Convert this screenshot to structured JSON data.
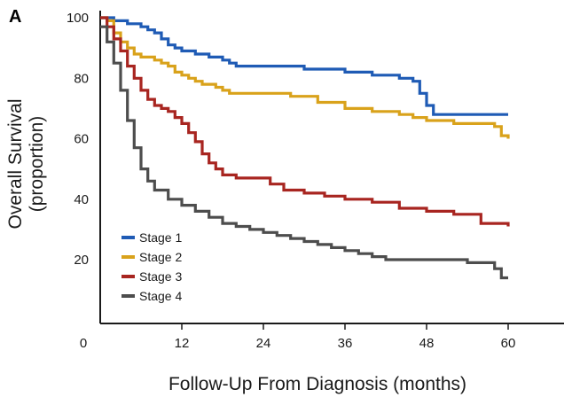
{
  "panel_label": "A",
  "chart_data": {
    "type": "line",
    "step": true,
    "xlabel": "Follow-Up From Diagnosis (months)",
    "ylabel_line1": "Overall Survival",
    "ylabel_line2": "(proportion)",
    "xlim": [
      0,
      60
    ],
    "ylim": [
      10,
      100
    ],
    "x_ticks": [
      0,
      12,
      24,
      36,
      48,
      60
    ],
    "y_ticks": [
      20,
      40,
      60,
      80,
      100
    ],
    "grid": false,
    "legend_position": "lower-left",
    "series": [
      {
        "name": "Stage 1",
        "color": "#1f5bb5",
        "points": [
          [
            0,
            100
          ],
          [
            1,
            100
          ],
          [
            2,
            99
          ],
          [
            4,
            98
          ],
          [
            6,
            97
          ],
          [
            7,
            96
          ],
          [
            8,
            95
          ],
          [
            9,
            93
          ],
          [
            10,
            91
          ],
          [
            11,
            90
          ],
          [
            12,
            89
          ],
          [
            14,
            88
          ],
          [
            16,
            87
          ],
          [
            18,
            86
          ],
          [
            19,
            85
          ],
          [
            20,
            84
          ],
          [
            24,
            84
          ],
          [
            30,
            83
          ],
          [
            36,
            82
          ],
          [
            40,
            81
          ],
          [
            44,
            80
          ],
          [
            46,
            79
          ],
          [
            47,
            75
          ],
          [
            48,
            71
          ],
          [
            49,
            68
          ],
          [
            60,
            68
          ]
        ]
      },
      {
        "name": "Stage 2",
        "color": "#d9a21b",
        "points": [
          [
            0,
            100
          ],
          [
            1,
            99
          ],
          [
            2,
            95
          ],
          [
            3,
            92
          ],
          [
            4,
            90
          ],
          [
            5,
            88
          ],
          [
            6,
            87
          ],
          [
            8,
            86
          ],
          [
            9,
            85
          ],
          [
            10,
            84
          ],
          [
            11,
            82
          ],
          [
            12,
            81
          ],
          [
            13,
            80
          ],
          [
            14,
            79
          ],
          [
            15,
            78
          ],
          [
            17,
            77
          ],
          [
            18,
            76
          ],
          [
            19,
            75
          ],
          [
            24,
            75
          ],
          [
            28,
            74
          ],
          [
            32,
            72
          ],
          [
            36,
            70
          ],
          [
            40,
            69
          ],
          [
            44,
            68
          ],
          [
            46,
            67
          ],
          [
            48,
            66
          ],
          [
            52,
            65
          ],
          [
            56,
            65
          ],
          [
            58,
            64
          ],
          [
            59,
            61
          ],
          [
            60,
            60
          ]
        ]
      },
      {
        "name": "Stage 3",
        "color": "#a82520",
        "points": [
          [
            0,
            100
          ],
          [
            1,
            97
          ],
          [
            2,
            93
          ],
          [
            3,
            89
          ],
          [
            4,
            84
          ],
          [
            5,
            80
          ],
          [
            6,
            76
          ],
          [
            7,
            73
          ],
          [
            8,
            71
          ],
          [
            9,
            70
          ],
          [
            10,
            69
          ],
          [
            11,
            67
          ],
          [
            12,
            65
          ],
          [
            13,
            62
          ],
          [
            14,
            59
          ],
          [
            15,
            55
          ],
          [
            16,
            52
          ],
          [
            17,
            50
          ],
          [
            18,
            48
          ],
          [
            20,
            47
          ],
          [
            24,
            47
          ],
          [
            25,
            45
          ],
          [
            27,
            43
          ],
          [
            30,
            42
          ],
          [
            33,
            41
          ],
          [
            36,
            40
          ],
          [
            40,
            39
          ],
          [
            44,
            37
          ],
          [
            48,
            36
          ],
          [
            52,
            35
          ],
          [
            56,
            32
          ],
          [
            60,
            31
          ]
        ]
      },
      {
        "name": "Stage 4",
        "color": "#4d4d4d",
        "points": [
          [
            0,
            97
          ],
          [
            1,
            92
          ],
          [
            2,
            85
          ],
          [
            3,
            76
          ],
          [
            4,
            66
          ],
          [
            5,
            57
          ],
          [
            6,
            50
          ],
          [
            7,
            46
          ],
          [
            8,
            43
          ],
          [
            10,
            40
          ],
          [
            12,
            38
          ],
          [
            14,
            36
          ],
          [
            16,
            34
          ],
          [
            18,
            32
          ],
          [
            20,
            31
          ],
          [
            22,
            30
          ],
          [
            24,
            29
          ],
          [
            26,
            28
          ],
          [
            28,
            27
          ],
          [
            30,
            26
          ],
          [
            32,
            25
          ],
          [
            34,
            24
          ],
          [
            36,
            23
          ],
          [
            38,
            22
          ],
          [
            40,
            21
          ],
          [
            42,
            20
          ],
          [
            48,
            20
          ],
          [
            54,
            19
          ],
          [
            58,
            17
          ],
          [
            59,
            14
          ],
          [
            60,
            14
          ]
        ]
      }
    ]
  }
}
